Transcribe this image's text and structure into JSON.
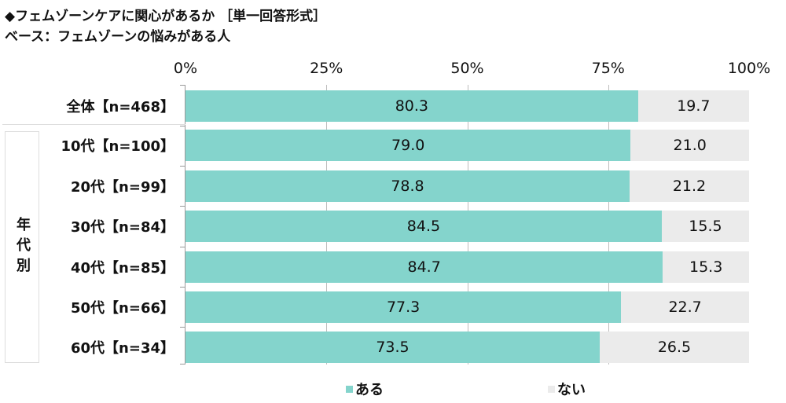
{
  "chart_data": {
    "type": "bar",
    "stacked": true,
    "orientation": "horizontal",
    "title": "◆フェムゾーンケアに関心があるか ［単一回答形式］",
    "subtitle": "ベース：フェムゾーンの悩みがある人",
    "xlim": [
      0,
      100
    ],
    "x_ticks": [
      "0%",
      "25%",
      "50%",
      "75%",
      "100%"
    ],
    "grid": true,
    "legend_position": "bottom",
    "group_label": "年代別",
    "categories": [
      "全体【n=468】",
      "10代【n=100】",
      "20代【n=99】",
      "30代【n=84】",
      "40代【n=85】",
      "50代【n=66】",
      "60代【n=34】"
    ],
    "series": [
      {
        "name": "ある",
        "color": "#84D4CC",
        "values": [
          80.3,
          79.0,
          78.8,
          84.5,
          84.7,
          77.3,
          73.5
        ]
      },
      {
        "name": "ない",
        "color": "#EBEBEB",
        "values": [
          19.7,
          21.0,
          21.2,
          15.5,
          15.3,
          22.7,
          26.5
        ]
      }
    ]
  }
}
